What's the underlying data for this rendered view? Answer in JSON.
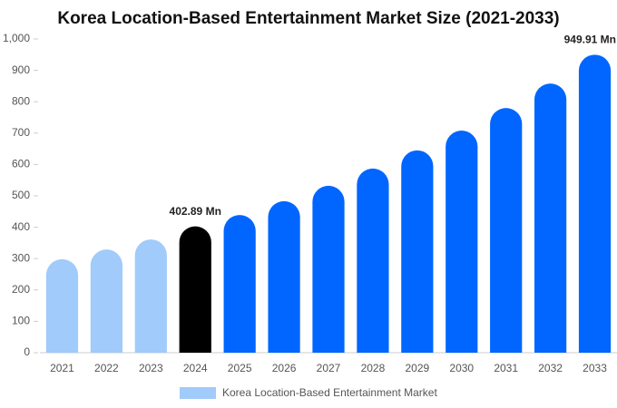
{
  "chart_data": {
    "type": "bar",
    "title": "Korea Location-Based Entertainment Market Size (2021-2033)",
    "categories": [
      "2021",
      "2022",
      "2023",
      "2024",
      "2025",
      "2026",
      "2027",
      "2028",
      "2029",
      "2030",
      "2031",
      "2032",
      "2033"
    ],
    "series": [
      {
        "name": "Korea Location-Based Entertainment Market",
        "color": "#a0cbfa",
        "values": [
          298,
          329,
          361,
          402.89,
          439,
          483,
          532,
          587,
          645,
          708,
          780,
          858,
          949.91
        ],
        "value_labels": [
          null,
          null,
          null,
          "402.89 Mn",
          null,
          null,
          null,
          null,
          null,
          null,
          null,
          null,
          "949.91 Mn"
        ],
        "colors": [
          "#a0cbfa",
          "#a0cbfa",
          "#a0cbfa",
          "#000000",
          "#0066ff",
          "#0066ff",
          "#0066ff",
          "#0066ff",
          "#0066ff",
          "#0066ff",
          "#0066ff",
          "#0066ff",
          "#0066ff"
        ]
      }
    ],
    "ylim": [
      0,
      1000
    ],
    "yticks": [
      0,
      100,
      200,
      300,
      400,
      500,
      600,
      700,
      800,
      900,
      {
        "value": 1000,
        "label": "1,000"
      }
    ],
    "grid": false
  }
}
